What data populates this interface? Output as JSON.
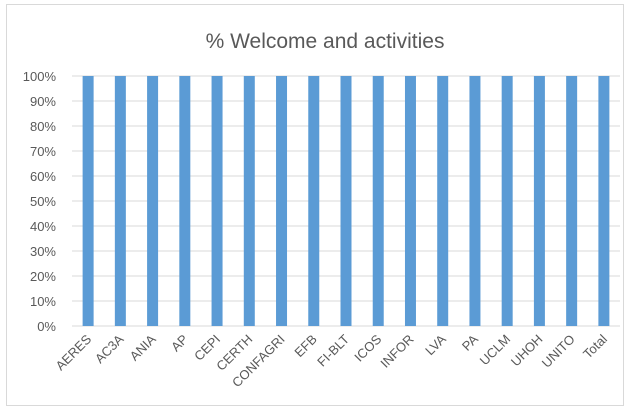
{
  "chart_data": {
    "type": "bar",
    "title": "% Welcome and activities",
    "categories": [
      "AERES",
      "AC3A",
      "ANIA",
      "AP",
      "CEPI",
      "CERTH",
      "CONFAGRI",
      "EFB",
      "FI-BLT",
      "ICOS",
      "INFOR",
      "LVA",
      "PA",
      "UCLM",
      "UHOH",
      "UNITO",
      "Total"
    ],
    "series": [
      {
        "values": [
          100,
          100,
          100,
          100,
          100,
          100,
          100,
          100,
          100,
          100,
          100,
          100,
          100,
          100,
          100,
          100,
          100
        ]
      }
    ],
    "ylim": [
      0,
      100
    ],
    "yticks": [
      "0%",
      "10%",
      "20%",
      "30%",
      "40%",
      "50%",
      "60%",
      "70%",
      "80%",
      "90%",
      "100%"
    ],
    "grid": true,
    "legend": "none",
    "colors": {
      "bar": "#5b9bd5",
      "grid": "#d9d9d9",
      "text": "#595959"
    }
  }
}
